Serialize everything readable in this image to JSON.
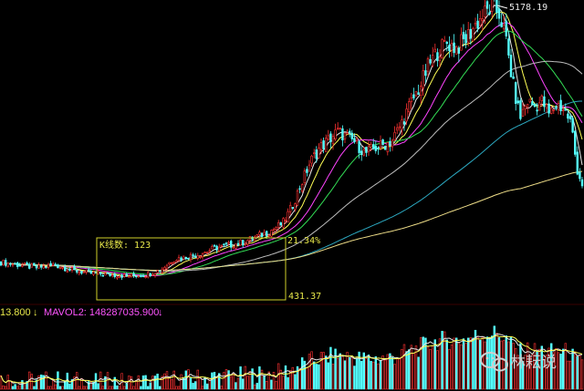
{
  "chart_data": {
    "type": "candlestick",
    "peak_label": "5178.19",
    "box": {
      "count_label": "K线数: 123",
      "pct_label": "21.34%",
      "low_label": "431.37"
    },
    "volume_legend": {
      "left_value": "13.800",
      "arrow1": "↓",
      "mavol2_label": "MAVOL2: 148287035.900",
      "arrow2": "↓"
    },
    "watermark": {
      "name": "林耘说"
    },
    "price_path": [
      [
        0,
        0.08
      ],
      [
        20,
        0.07
      ],
      [
        40,
        0.06
      ],
      [
        60,
        0.07
      ],
      [
        80,
        0.05
      ],
      [
        100,
        0.04
      ],
      [
        120,
        0.035
      ],
      [
        140,
        0.03
      ],
      [
        160,
        0.035
      ],
      [
        175,
        0.05
      ],
      [
        190,
        0.09
      ],
      [
        205,
        0.1
      ],
      [
        220,
        0.11
      ],
      [
        235,
        0.13
      ],
      [
        250,
        0.14
      ],
      [
        265,
        0.15
      ],
      [
        280,
        0.17
      ],
      [
        295,
        0.19
      ],
      [
        310,
        0.22
      ],
      [
        320,
        0.28
      ],
      [
        330,
        0.36
      ],
      [
        340,
        0.44
      ],
      [
        350,
        0.49
      ],
      [
        360,
        0.52
      ],
      [
        370,
        0.55
      ],
      [
        380,
        0.53
      ],
      [
        390,
        0.51
      ],
      [
        400,
        0.47
      ],
      [
        410,
        0.49
      ],
      [
        420,
        0.5
      ],
      [
        430,
        0.52
      ],
      [
        440,
        0.58
      ],
      [
        450,
        0.65
      ],
      [
        460,
        0.71
      ],
      [
        470,
        0.79
      ],
      [
        480,
        0.84
      ],
      [
        490,
        0.87
      ],
      [
        500,
        0.85
      ],
      [
        510,
        0.88
      ],
      [
        520,
        0.93
      ],
      [
        530,
        0.97
      ],
      [
        540,
        1.0
      ],
      [
        548,
        0.97
      ],
      [
        555,
        0.87
      ],
      [
        562,
        0.72
      ],
      [
        570,
        0.6
      ],
      [
        578,
        0.66
      ],
      [
        586,
        0.64
      ],
      [
        594,
        0.66
      ],
      [
        602,
        0.61
      ],
      [
        610,
        0.65
      ],
      [
        618,
        0.63
      ],
      [
        626,
        0.58
      ],
      [
        632,
        0.42
      ],
      [
        638,
        0.36
      ]
    ],
    "colors": {
      "background": "#000000",
      "up": "#ff3232",
      "down": "#54ffff",
      "ma_white": "#e6e6e6",
      "ma_yellow": "#ffff55",
      "ma_magenta": "#ff44ff",
      "ma_green": "#33dd55",
      "ma_gray": "#bdbdbd",
      "ma_cyan": "#2ca8c0",
      "ma_long": "#eedd88",
      "box": "#d0d02a",
      "legend_yellow": "#e8e84a",
      "legend_magenta": "#ff55ff"
    }
  }
}
